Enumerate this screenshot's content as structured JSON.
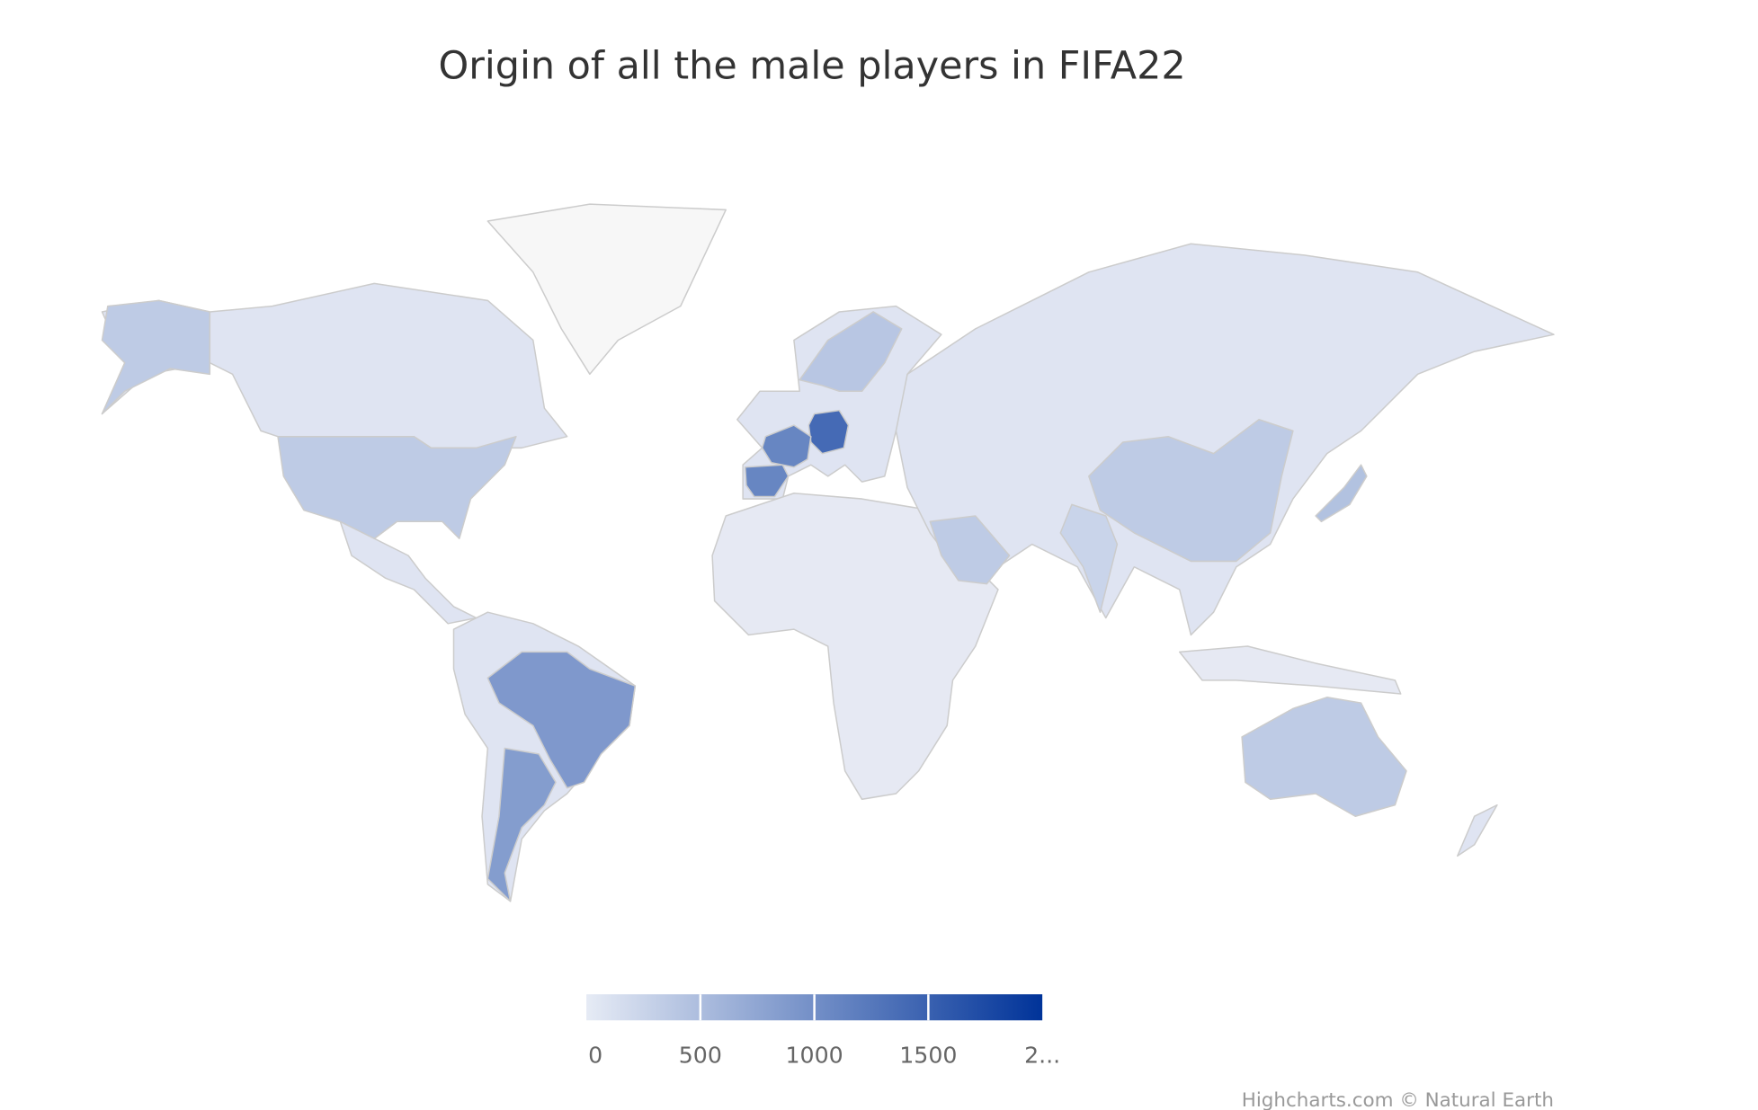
{
  "chart_data": {
    "type": "map",
    "title": "Origin of all the male players in FIFA22",
    "credits": "Highcharts.com © Natural Earth",
    "values": [
      1400,
      1100,
      1100,
      900,
      850,
      350,
      350,
      350,
      450,
      400,
      350,
      250
    ],
    "colorlim": [
      0,
      2000
    ],
    "colorticks": [
      0,
      500,
      1000,
      1500,
      {
        "value": 2000,
        "label": "2..."
      }
    ],
    "min_color": "#e6ebf5",
    "max_color": "#003399"
  }
}
